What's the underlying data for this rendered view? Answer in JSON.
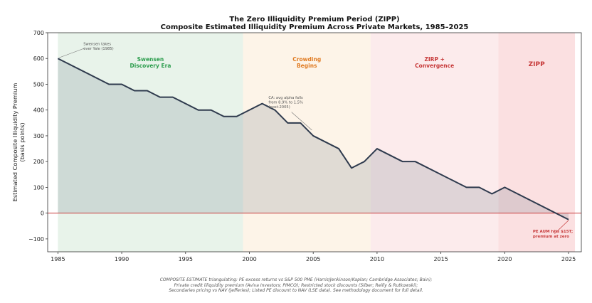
{
  "chart_data": {
    "type": "area",
    "title": "The Zero Illiquidity Premium Period (ZIPP)",
    "subtitle": "Composite Estimated Illiquidity Premium Across Private Markets, 1985–2025",
    "xlabel": "",
    "ylabel_lines": [
      "Estimated Composite Illiquidity Premium",
      "(basis points)"
    ],
    "xlim": [
      1984.2,
      2026.0
    ],
    "ylim": [
      -150,
      700
    ],
    "xticks": [
      1985,
      1990,
      1995,
      2000,
      2005,
      2010,
      2015,
      2020,
      2025
    ],
    "yticks": [
      -100,
      0,
      100,
      200,
      300,
      400,
      500,
      600,
      700
    ],
    "grid": false,
    "series": [
      {
        "x": [
          1985,
          1989,
          1990,
          1991,
          1992,
          1993,
          1994,
          1996,
          1997,
          1998,
          1999,
          2001,
          2002,
          2003,
          2004,
          2005,
          2007,
          2008,
          2009,
          2010,
          2012,
          2013,
          2017,
          2018,
          2019,
          2020,
          2025
        ],
        "y": [
          600,
          500,
          500,
          475,
          475,
          450,
          450,
          400,
          400,
          375,
          375,
          425,
          400,
          350,
          350,
          300,
          250,
          175,
          200,
          250,
          200,
          200,
          100,
          100,
          75,
          100,
          -25
        ]
      }
    ],
    "zero_line": 0,
    "eras": [
      {
        "label_lines": [
          "Swensen",
          "Discovery Era"
        ],
        "x0": 1985,
        "x1": 1999.5,
        "fill": "#e8f3ea",
        "text_color": "#2e9e4f"
      },
      {
        "label_lines": [
          "Crowding",
          "Begins"
        ],
        "x0": 1999.5,
        "x1": 2009.5,
        "fill": "#fdf4e8",
        "text_color": "#e07b22"
      },
      {
        "label_lines": [
          "ZIRP +",
          "Convergence"
        ],
        "x0": 2009.5,
        "x1": 2019.5,
        "fill": "#fcebec",
        "text_color": "#c73a3a"
      },
      {
        "label_lines": [
          "ZIPP"
        ],
        "x0": 2019.5,
        "x1": 2025.5,
        "fill": "#fbe0e1",
        "text_color": "#c73a3a"
      }
    ],
    "annotations": [
      {
        "lines": [
          "Swensen takes",
          "over Yale (1985)"
        ],
        "color": "#555555",
        "bold": false
      },
      {
        "lines": [
          "CA: avg alpha falls",
          "from 8.9% to 1.5%",
          "(post-2005)"
        ],
        "color": "#555555",
        "bold": false
      },
      {
        "lines": [
          "PE AUM hits $15T;",
          "premium at zero"
        ],
        "color": "#c73a3a",
        "bold": true
      }
    ],
    "colors": {
      "line": "#2e3a4d",
      "area_fill": "#3d4e66",
      "zero_line": "#c73a3a",
      "axis": "#333333"
    }
  },
  "footnote_lines": [
    "COMPOSITE ESTIMATE triangulating: PE excess returns vs S&P 500 PME (Harris/Jenkinson/Kaplan; Cambridge Associates; Bain);",
    "Private credit illiquidity premium (Aviva Investors; PIMCO); Restricted stock discounts (Silber; Reilly & Rutkowski);",
    "Secondaries pricing vs NAV (Jefferies); Listed PE discount to NAV (LSE data). See methodology document for full detail."
  ]
}
